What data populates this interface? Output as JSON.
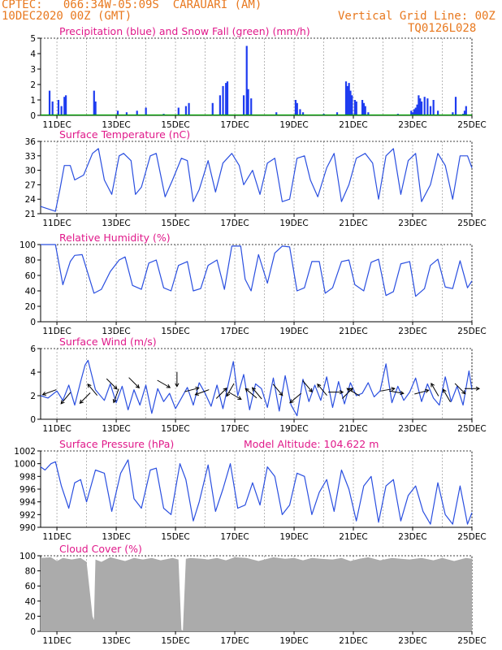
{
  "header": {
    "station_line": "CPTEC:   066:34W-05:09S  CARAUARI (AM)",
    "run_line": "10DEC2020 00Z (GMT)",
    "grid_note": "Vertical Grid Line: 00Z",
    "code": "TQ0126L028"
  },
  "colors": {
    "header_text": "#e8781e",
    "title_text": "#e0198a",
    "series_line": "#2a4fe0",
    "precip_bar": "#1e3cf0",
    "snow_line": "#00a000",
    "cloud_fill": "#ababab",
    "wind_arrow": "#000000"
  },
  "x_axis": {
    "ticks": [
      "11DEC",
      "13DEC",
      "15DEC",
      "17DEC",
      "19DEC",
      "21DEC",
      "23DEC",
      "25DEC"
    ],
    "tick_days": [
      1,
      3,
      5,
      7,
      9,
      11,
      13,
      15
    ],
    "day_range": [
      0.45,
      15
    ],
    "grid_every_days": 1
  },
  "chart_data": [
    {
      "id": "precip",
      "type": "bar",
      "title": "Precipitation (blue) and Snow Fall (green) (mm/h)",
      "ylim": [
        0,
        5
      ],
      "yticks": [
        0,
        1,
        2,
        3,
        4,
        5
      ],
      "series": [
        {
          "name": "blue",
          "kind": "bar",
          "x": [
            0.75,
            0.85,
            1.05,
            1.15,
            1.25,
            1.3,
            2.25,
            2.3,
            3.05,
            3.35,
            3.7,
            4.0,
            4.6,
            5.1,
            5.35,
            5.45,
            6.25,
            6.5,
            6.6,
            6.7,
            6.75,
            7.3,
            7.4,
            7.45,
            7.55,
            8.4,
            9.05,
            9.1,
            9.2,
            9.3,
            10.0,
            10.45,
            10.75,
            10.8,
            10.85,
            10.9,
            10.95,
            11.05,
            11.1,
            11.3,
            11.35,
            11.4,
            11.5,
            12.5,
            12.95,
            13.0,
            13.05,
            13.1,
            13.15,
            13.2,
            13.25,
            13.3,
            13.4,
            13.5,
            13.6,
            13.7,
            13.85,
            14.35,
            14.45,
            14.7,
            14.75,
            14.8
          ],
          "values": [
            1.6,
            0.9,
            1.0,
            0.6,
            1.2,
            1.3,
            1.6,
            0.9,
            0.3,
            0.2,
            0.3,
            0.5,
            0.1,
            0.5,
            0.6,
            0.8,
            0.8,
            1.3,
            1.9,
            2.1,
            2.2,
            1.3,
            4.5,
            1.7,
            1.1,
            0.2,
            1.0,
            0.8,
            0.4,
            0.2,
            0.1,
            0.2,
            2.2,
            1.9,
            2.1,
            1.6,
            1.3,
            1.0,
            0.9,
            1.0,
            0.8,
            0.6,
            0.2,
            0.1,
            0.3,
            0.2,
            0.4,
            0.5,
            0.7,
            1.3,
            1.1,
            0.9,
            1.2,
            1.1,
            0.6,
            1.0,
            0.3,
            0.2,
            1.2,
            0.1,
            0.3,
            0.6
          ]
        },
        {
          "name": "green",
          "kind": "line",
          "x": [
            0.45,
            15
          ],
          "values": [
            0,
            0
          ]
        }
      ]
    },
    {
      "id": "temp",
      "type": "line",
      "title": "Surface Temperature (nC)",
      "ylim": [
        21,
        36
      ],
      "yticks": [
        21,
        24,
        27,
        30,
        33,
        36
      ],
      "series": [
        {
          "name": "temperature",
          "x": [
            0.45,
            0.95,
            1.1,
            1.25,
            1.45,
            1.6,
            1.9,
            2.2,
            2.4,
            2.6,
            2.85,
            3.1,
            3.25,
            3.5,
            3.65,
            3.85,
            4.15,
            4.35,
            4.65,
            4.9,
            5.2,
            5.4,
            5.6,
            5.8,
            6.1,
            6.35,
            6.6,
            6.9,
            7.15,
            7.3,
            7.6,
            7.85,
            8.1,
            8.35,
            8.6,
            8.85,
            9.1,
            9.35,
            9.55,
            9.8,
            10.1,
            10.35,
            10.6,
            10.85,
            11.1,
            11.4,
            11.65,
            11.85,
            12.1,
            12.35,
            12.6,
            12.85,
            13.1,
            13.3,
            13.6,
            13.85,
            14.1,
            14.35,
            14.6,
            14.85,
            15.0
          ],
          "values": [
            22.5,
            21.5,
            26.0,
            31.0,
            31.0,
            28.0,
            29.0,
            33.5,
            34.5,
            28.0,
            25.0,
            33.0,
            33.5,
            32.0,
            25.0,
            26.5,
            33.0,
            33.5,
            24.5,
            28.0,
            32.5,
            32.0,
            23.5,
            26.0,
            32.0,
            25.5,
            31.5,
            33.5,
            31.0,
            27.0,
            30.0,
            25.0,
            31.5,
            32.5,
            23.5,
            24.0,
            32.5,
            33.0,
            28.0,
            24.5,
            30.5,
            33.5,
            23.5,
            27.0,
            32.5,
            33.5,
            31.5,
            24.0,
            33.0,
            34.5,
            25.0,
            32.0,
            33.5,
            23.5,
            27.0,
            33.5,
            31.0,
            24.0,
            33.0,
            33.0,
            30.5
          ]
        }
      ]
    },
    {
      "id": "rh",
      "type": "line",
      "title": "Relative Humidity (%)",
      "ylim": [
        0,
        100
      ],
      "yticks": [
        0,
        20,
        40,
        60,
        80,
        100
      ],
      "series": [
        {
          "name": "humidity",
          "x": [
            0.45,
            0.95,
            1.2,
            1.45,
            1.6,
            1.85,
            2.25,
            2.5,
            2.8,
            3.1,
            3.3,
            3.55,
            3.85,
            4.1,
            4.35,
            4.6,
            4.85,
            5.1,
            5.4,
            5.6,
            5.85,
            6.1,
            6.4,
            6.65,
            6.9,
            7.2,
            7.35,
            7.55,
            7.8,
            8.1,
            8.35,
            8.6,
            8.85,
            9.1,
            9.35,
            9.6,
            9.85,
            10.05,
            10.3,
            10.6,
            10.85,
            11.05,
            11.35,
            11.6,
            11.85,
            12.1,
            12.35,
            12.6,
            12.9,
            13.1,
            13.4,
            13.6,
            13.85,
            14.1,
            14.35,
            14.6,
            14.85,
            15.0
          ],
          "values": [
            100,
            100,
            48,
            78,
            86,
            87,
            37,
            42,
            65,
            80,
            84,
            47,
            42,
            76,
            80,
            44,
            40,
            73,
            78,
            40,
            43,
            73,
            80,
            42,
            98,
            98,
            55,
            40,
            87,
            50,
            89,
            98,
            97,
            40,
            44,
            78,
            78,
            37,
            44,
            78,
            80,
            48,
            40,
            77,
            81,
            34,
            39,
            75,
            78,
            33,
            43,
            73,
            81,
            45,
            43,
            79,
            44,
            53
          ]
        }
      ]
    },
    {
      "id": "wind",
      "type": "line",
      "title": "Surface Wind (m/s)",
      "ylim": [
        0,
        6
      ],
      "yticks": [
        0,
        2,
        4,
        6
      ],
      "series": [
        {
          "name": "wind",
          "x": [
            0.45,
            0.7,
            1.0,
            1.2,
            1.4,
            1.6,
            1.8,
            1.95,
            2.05,
            2.3,
            2.6,
            2.8,
            3.0,
            3.2,
            3.4,
            3.6,
            3.8,
            4.0,
            4.2,
            4.4,
            4.6,
            4.8,
            5.0,
            5.2,
            5.4,
            5.6,
            5.8,
            6.0,
            6.2,
            6.4,
            6.6,
            6.8,
            6.95,
            7.1,
            7.3,
            7.5,
            7.7,
            7.9,
            8.1,
            8.3,
            8.5,
            8.7,
            8.9,
            9.1,
            9.3,
            9.5,
            9.7,
            9.9,
            10.1,
            10.3,
            10.5,
            10.7,
            10.9,
            11.1,
            11.3,
            11.5,
            11.7,
            11.9,
            12.1,
            12.3,
            12.5,
            12.7,
            12.9,
            13.1,
            13.3,
            13.5,
            13.7,
            13.9,
            14.1,
            14.3,
            14.5,
            14.7,
            14.9,
            15.0
          ],
          "values": [
            2.0,
            1.8,
            2.4,
            1.6,
            2.9,
            1.2,
            3.2,
            4.6,
            5.0,
            2.5,
            1.6,
            3.0,
            1.4,
            2.8,
            0.8,
            2.5,
            1.2,
            2.9,
            0.5,
            2.6,
            1.5,
            2.2,
            0.9,
            1.8,
            2.7,
            1.2,
            3.1,
            2.2,
            1.1,
            2.9,
            0.9,
            3.2,
            4.9,
            2.0,
            3.8,
            0.8,
            3.0,
            2.6,
            1.0,
            3.5,
            0.7,
            3.7,
            1.2,
            0.3,
            3.4,
            1.5,
            2.9,
            1.6,
            3.6,
            1.0,
            3.2,
            1.3,
            3.1,
            2.0,
            2.2,
            3.1,
            1.9,
            2.4,
            4.7,
            1.4,
            2.8,
            1.6,
            2.3,
            3.5,
            1.5,
            3.0,
            1.8,
            1.2,
            3.6,
            1.5,
            2.8,
            1.2,
            4.1,
            2.5
          ]
        }
      ],
      "arrows": [
        {
          "x": 0.75,
          "y": 2.3,
          "angle": 200
        },
        {
          "x": 1.3,
          "y": 1.8,
          "angle": 230
        },
        {
          "x": 1.95,
          "y": 1.8,
          "angle": 225
        },
        {
          "x": 2.2,
          "y": 2.5,
          "angle": 130
        },
        {
          "x": 2.85,
          "y": 3.0,
          "angle": 315
        },
        {
          "x": 3.0,
          "y": 2.0,
          "angle": 250
        },
        {
          "x": 3.6,
          "y": 3.1,
          "angle": 315
        },
        {
          "x": 4.6,
          "y": 3.0,
          "angle": 330
        },
        {
          "x": 5.05,
          "y": 3.4,
          "angle": 270
        },
        {
          "x": 5.55,
          "y": 2.5,
          "angle": 15
        },
        {
          "x": 5.9,
          "y": 2.3,
          "angle": 200
        },
        {
          "x": 6.55,
          "y": 2.2,
          "angle": 45
        },
        {
          "x": 6.85,
          "y": 2.5,
          "angle": 240
        },
        {
          "x": 7.0,
          "y": 2.0,
          "angle": 330
        },
        {
          "x": 7.55,
          "y": 2.2,
          "angle": 140
        },
        {
          "x": 7.75,
          "y": 2.2,
          "angle": 130
        },
        {
          "x": 8.45,
          "y": 2.5,
          "angle": 310
        },
        {
          "x": 9.05,
          "y": 1.8,
          "angle": 220
        },
        {
          "x": 9.45,
          "y": 2.8,
          "angle": 310
        },
        {
          "x": 9.95,
          "y": 2.5,
          "angle": 130
        },
        {
          "x": 10.4,
          "y": 2.3,
          "angle": 0
        },
        {
          "x": 10.8,
          "y": 2.2,
          "angle": 45
        },
        {
          "x": 11.0,
          "y": 2.3,
          "angle": 150
        },
        {
          "x": 12.15,
          "y": 2.5,
          "angle": 10
        },
        {
          "x": 12.45,
          "y": 2.3,
          "angle": 350
        },
        {
          "x": 13.3,
          "y": 2.3,
          "angle": 15
        },
        {
          "x": 13.75,
          "y": 2.5,
          "angle": 120
        },
        {
          "x": 14.15,
          "y": 2.0,
          "angle": 120
        },
        {
          "x": 14.6,
          "y": 2.6,
          "angle": 315
        },
        {
          "x": 15.0,
          "y": 2.6,
          "angle": 0
        }
      ]
    },
    {
      "id": "pressure",
      "type": "line",
      "title": "Surface Pressure (hPa)",
      "annotation": "Model Altitude: 104.622 m",
      "ylim": [
        990,
        1002
      ],
      "yticks": [
        990,
        992,
        994,
        996,
        998,
        1000,
        1002
      ],
      "series": [
        {
          "name": "pressure",
          "x": [
            0.45,
            0.6,
            0.8,
            0.95,
            1.15,
            1.4,
            1.6,
            1.8,
            2.0,
            2.3,
            2.6,
            2.85,
            3.15,
            3.4,
            3.6,
            3.85,
            4.15,
            4.35,
            4.6,
            4.85,
            5.15,
            5.35,
            5.6,
            5.8,
            6.1,
            6.35,
            6.6,
            6.85,
            7.1,
            7.35,
            7.6,
            7.85,
            8.1,
            8.35,
            8.6,
            8.85,
            9.1,
            9.35,
            9.6,
            9.85,
            10.1,
            10.35,
            10.6,
            10.85,
            11.1,
            11.35,
            11.6,
            11.85,
            12.1,
            12.35,
            12.6,
            12.85,
            13.1,
            13.35,
            13.6,
            13.85,
            14.1,
            14.35,
            14.6,
            14.85,
            15.0
          ],
          "values": [
            999.5,
            999.0,
            1000.0,
            1000.3,
            996.5,
            993.0,
            997.0,
            997.5,
            994.0,
            999.0,
            998.5,
            992.5,
            998.5,
            1000.6,
            994.5,
            993.0,
            999.0,
            999.3,
            993.0,
            992.0,
            1000.0,
            997.5,
            991.0,
            994.0,
            999.8,
            992.5,
            996.0,
            1000.0,
            993.0,
            993.5,
            997.0,
            993.5,
            999.5,
            998.0,
            992.0,
            993.5,
            998.5,
            998.0,
            992.0,
            995.5,
            997.5,
            992.5,
            999.0,
            996.0,
            991.0,
            996.5,
            998.0,
            990.8,
            996.5,
            997.5,
            991.0,
            995.0,
            996.5,
            992.5,
            990.5,
            997.0,
            992.0,
            990.5,
            996.5,
            990.5,
            992.3
          ]
        }
      ]
    },
    {
      "id": "cloud",
      "type": "area",
      "title": "Cloud Cover (%)",
      "ylim": [
        0,
        100
      ],
      "yticks": [
        0,
        20,
        40,
        60,
        80,
        100
      ],
      "series": [
        {
          "name": "cloud cover",
          "x": [
            0.45,
            0.8,
            1.0,
            1.2,
            1.5,
            1.8,
            2.0,
            2.2,
            2.25,
            2.3,
            2.5,
            2.8,
            3.0,
            3.3,
            3.6,
            3.9,
            4.2,
            4.5,
            4.9,
            5.1,
            5.2,
            5.25,
            5.35,
            5.5,
            5.9,
            6.1,
            6.4,
            6.7,
            7.0,
            7.4,
            7.8,
            8.3,
            8.7,
            9.0,
            9.3,
            9.6,
            9.9,
            10.3,
            10.6,
            10.9,
            11.2,
            11.5,
            11.9,
            12.3,
            12.6,
            12.9,
            13.3,
            13.7,
            14.0,
            14.4,
            14.8,
            15.0
          ],
          "values": [
            97,
            98,
            93,
            97,
            95,
            97,
            92,
            20,
            15,
            95,
            92,
            98,
            96,
            93,
            97,
            95,
            97,
            94,
            97,
            95,
            2,
            1,
            96,
            97,
            96,
            95,
            97,
            94,
            98,
            97,
            93,
            98,
            96,
            97,
            94,
            97,
            96,
            95,
            97,
            93,
            96,
            98,
            94,
            97,
            96,
            95,
            97,
            94,
            97,
            93,
            97,
            96
          ]
        }
      ]
    }
  ]
}
